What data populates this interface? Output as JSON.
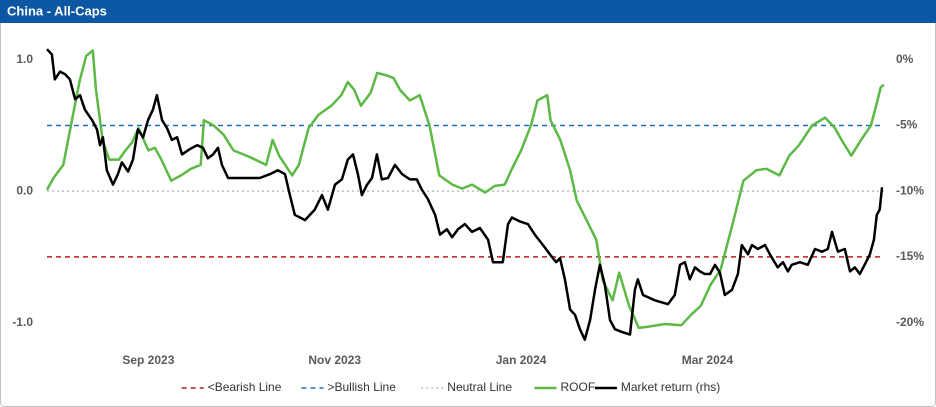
{
  "chart_data": {
    "type": "line",
    "title": "China - All-Caps",
    "xlim": [
      0,
      256
    ],
    "xticks": [
      {
        "value": 31,
        "label": "Sep 2023"
      },
      {
        "value": 88,
        "label": "Nov 2023"
      },
      {
        "value": 145,
        "label": "Jan 2024"
      },
      {
        "value": 202,
        "label": "Mar 2024"
      }
    ],
    "ylim": [
      -1.17,
      1.15
    ],
    "yticks": [
      {
        "value": -1,
        "label": "-1.0"
      },
      {
        "value": 0,
        "label": "0.0"
      },
      {
        "value": 1,
        "label": "1.0"
      }
    ],
    "y2lim": [
      -21.7,
      1.5
    ],
    "y2ticks": [
      {
        "value": -20,
        "label": "-20%"
      },
      {
        "value": -15,
        "label": "-15%"
      },
      {
        "value": -10,
        "label": "-10%"
      },
      {
        "value": -5,
        "label": "-5%"
      },
      {
        "value": 0,
        "label": "0%"
      }
    ],
    "legend": "bottom",
    "series": [
      {
        "name": "<Bearish Line",
        "color": "#b22222",
        "dash": "dashed",
        "value": -0.5
      },
      {
        "name": ">Bullish Line",
        "color": "#1f6fc0",
        "dash": "dashed",
        "value": 0.5
      },
      {
        "name": "Neutral Line",
        "color": "#bdbdbd",
        "dash": "dotted",
        "value": 0
      },
      {
        "name": "ROOF",
        "color": "#5cb946",
        "x": [
          0,
          2,
          5,
          7,
          10,
          12,
          14,
          15,
          17,
          19,
          22,
          24,
          26,
          28,
          31,
          33,
          35,
          38,
          41,
          44,
          47,
          48,
          51,
          54,
          57,
          62,
          67,
          69,
          71,
          75,
          77,
          80,
          83,
          87,
          90,
          92,
          94,
          96,
          99,
          101,
          104,
          106,
          108,
          111,
          114,
          117,
          120,
          124,
          127,
          130,
          134,
          137,
          140,
          142,
          145,
          148,
          150,
          153,
          154,
          157,
          160,
          162,
          165,
          168,
          170,
          173,
          175,
          178,
          181,
          184,
          189,
          194,
          197,
          200,
          203,
          206,
          210,
          213,
          217,
          220,
          224,
          227,
          230,
          234,
          238,
          241,
          243,
          246,
          249,
          252,
          254,
          255,
          256
        ],
        "values": [
          0.01,
          0.1,
          0.2,
          0.46,
          0.84,
          1.03,
          1.07,
          0.77,
          0.39,
          0.24,
          0.24,
          0.31,
          0.37,
          0.48,
          0.31,
          0.33,
          0.24,
          0.08,
          0.12,
          0.17,
          0.2,
          0.54,
          0.5,
          0.43,
          0.31,
          0.26,
          0.2,
          0.39,
          0.27,
          0.12,
          0.2,
          0.48,
          0.58,
          0.65,
          0.73,
          0.83,
          0.77,
          0.65,
          0.75,
          0.9,
          0.88,
          0.86,
          0.77,
          0.69,
          0.73,
          0.5,
          0.12,
          0.05,
          0.02,
          0.05,
          -0.01,
          0.04,
          0.05,
          0.16,
          0.31,
          0.5,
          0.69,
          0.73,
          0.54,
          0.39,
          0.16,
          -0.07,
          -0.22,
          -0.37,
          -0.68,
          -0.83,
          -0.62,
          -0.87,
          -1.04,
          -1.03,
          -1.01,
          -1.02,
          -0.94,
          -0.87,
          -0.71,
          -0.6,
          -0.22,
          0.08,
          0.16,
          0.17,
          0.12,
          0.27,
          0.35,
          0.5,
          0.56,
          0.48,
          0.39,
          0.27,
          0.39,
          0.5,
          0.69,
          0.79,
          0.81
        ]
      },
      {
        "name": "Market return (rhs)",
        "color": "#000000",
        "axis": "y2",
        "x": [
          0,
          1.5,
          2.4,
          4.0,
          5.5,
          7.0,
          8.6,
          10.1,
          11.6,
          13.8,
          15.3,
          16.2,
          17.1,
          18.3,
          20.2,
          21.7,
          22.9,
          24.8,
          26.3,
          27.8,
          29.4,
          30.9,
          32.4,
          33.6,
          35.2,
          36.7,
          38.2,
          39.8,
          41.3,
          43.7,
          45.9,
          47.7,
          49.2,
          50.8,
          52.3,
          53.5,
          55.4,
          59.0,
          65.1,
          68.2,
          70.6,
          72.8,
          74.3,
          75.8,
          78.9,
          81.9,
          84.1,
          85.9,
          88.1,
          90.2,
          92.0,
          93.6,
          95.1,
          96.3,
          97.9,
          99.4,
          100.9,
          102.4,
          104.3,
          106.4,
          108.6,
          111.0,
          113.1,
          114.7,
          116.5,
          118.7,
          120.2,
          122.3,
          123.9,
          125.7,
          127.8,
          130.0,
          132.4,
          134.9,
          136.4,
          139.4,
          141.0,
          142.2,
          144.6,
          147.1,
          149.2,
          151.7,
          153.8,
          155.7,
          156.9,
          158.4,
          160.0,
          161.5,
          163.0,
          164.5,
          166.1,
          167.6,
          169.1,
          170.6,
          172.2,
          173.7,
          175.8,
          178.3,
          179.8,
          180.7,
          182.3,
          185.9,
          189.9,
          192.0,
          193.6,
          195.1,
          196.6,
          198.2,
          199.7,
          201.2,
          202.8,
          204.3,
          205.8,
          207.3,
          209.5,
          211.3,
          212.5,
          214.4,
          215.6,
          217.4,
          219.6,
          221.1,
          223.5,
          225.1,
          226.6,
          227.8,
          230.3,
          232.7,
          234.9,
          237.0,
          238.8,
          240.1,
          241.9,
          244.0,
          245.6,
          247.1,
          248.6,
          250.5,
          251.7,
          252.9,
          253.8,
          254.7,
          255.4
        ],
        "values": [
          0.8,
          0.4,
          -1.5,
          -0.9,
          -1.1,
          -1.5,
          -3.0,
          -2.7,
          -3.8,
          -4.6,
          -5.3,
          -6.5,
          -5.9,
          -8.4,
          -9.5,
          -8.7,
          -7.8,
          -8.5,
          -7.6,
          -5.3,
          -5.9,
          -4.6,
          -3.8,
          -2.7,
          -4.6,
          -5.2,
          -6.1,
          -5.9,
          -7.2,
          -6.8,
          -6.5,
          -6.7,
          -7.5,
          -7.2,
          -6.7,
          -8.0,
          -9.0,
          -9.0,
          -9.0,
          -8.7,
          -8.4,
          -8.7,
          -10.3,
          -11.8,
          -12.2,
          -11.4,
          -10.3,
          -11.4,
          -9.5,
          -9.1,
          -7.6,
          -7.2,
          -8.7,
          -10.3,
          -9.5,
          -9.0,
          -7.2,
          -9.1,
          -9.0,
          -8.0,
          -8.7,
          -9.1,
          -9.1,
          -9.9,
          -10.6,
          -11.8,
          -13.3,
          -12.9,
          -13.5,
          -12.9,
          -12.5,
          -13.1,
          -12.8,
          -13.7,
          -15.4,
          -15.4,
          -12.5,
          -12.0,
          -12.3,
          -12.5,
          -13.3,
          -14.1,
          -14.8,
          -15.4,
          -15.1,
          -16.7,
          -19.0,
          -19.4,
          -20.5,
          -21.3,
          -19.8,
          -17.5,
          -15.6,
          -17.1,
          -19.8,
          -20.5,
          -20.7,
          -20.9,
          -17.5,
          -16.7,
          -17.9,
          -18.3,
          -18.6,
          -17.9,
          -15.6,
          -15.4,
          -16.7,
          -15.8,
          -16.1,
          -16.3,
          -16.3,
          -15.6,
          -16.2,
          -17.9,
          -17.5,
          -16.3,
          -14.1,
          -14.8,
          -14.1,
          -14.4,
          -14.1,
          -14.8,
          -15.8,
          -15.4,
          -16.1,
          -15.6,
          -15.4,
          -15.6,
          -14.4,
          -14.6,
          -14.4,
          -13.1,
          -14.6,
          -14.4,
          -16.1,
          -15.8,
          -16.3,
          -15.4,
          -14.8,
          -13.7,
          -11.8,
          -11.4,
          -9.7
        ]
      }
    ]
  }
}
